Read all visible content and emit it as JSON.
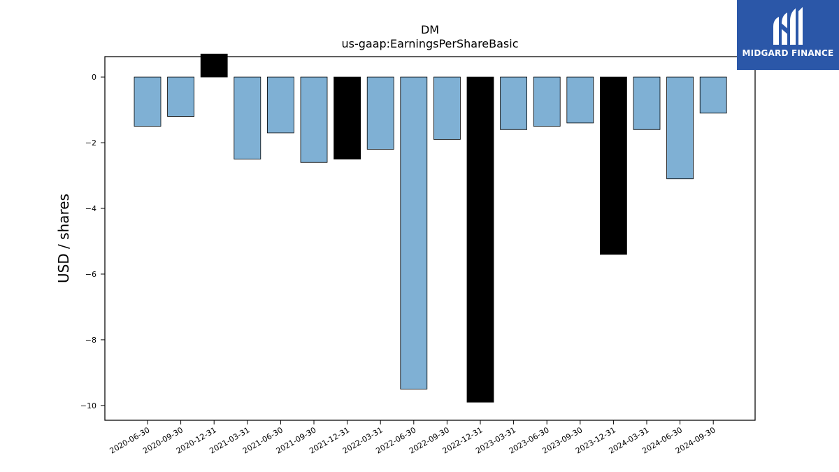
{
  "brand": {
    "name": "MIDGARD FINANCE",
    "logo_icon": "midgard-m-icon",
    "bg_color": "#2b57a8"
  },
  "chart_data": {
    "type": "bar",
    "title": "DM",
    "subtitle": "us-gaap:EarningsPerShareBasic",
    "xlabel": "",
    "ylabel": "USD / shares",
    "ylim": [
      -10.45,
      0.62
    ],
    "yticks": [
      0,
      -2,
      -4,
      -6,
      -8,
      -10
    ],
    "ytick_labels": [
      "0",
      "−2",
      "−4",
      "−6",
      "−8",
      "−10"
    ],
    "grid": false,
    "categories": [
      "2020-06-30",
      "2020-09-30",
      "2020-12-31",
      "2021-03-31",
      "2021-06-30",
      "2021-09-30",
      "2021-12-31",
      "2022-03-31",
      "2022-06-30",
      "2022-09-30",
      "2022-12-31",
      "2023-03-31",
      "2023-06-30",
      "2023-09-30",
      "2023-12-31",
      "2024-03-31",
      "2024-06-30",
      "2024-09-30"
    ],
    "values": [
      -1.5,
      -1.2,
      0.7,
      -2.5,
      -1.7,
      -2.6,
      -2.5,
      -2.2,
      -9.5,
      -1.9,
      -9.9,
      -1.6,
      -1.5,
      -1.4,
      -5.4,
      -1.6,
      -3.1,
      -1.1
    ],
    "bar_colors": [
      "#7fb0d4",
      "#7fb0d4",
      "#000000",
      "#7fb0d4",
      "#7fb0d4",
      "#7fb0d4",
      "#000000",
      "#7fb0d4",
      "#7fb0d4",
      "#7fb0d4",
      "#000000",
      "#7fb0d4",
      "#7fb0d4",
      "#7fb0d4",
      "#000000",
      "#7fb0d4",
      "#7fb0d4",
      "#7fb0d4"
    ]
  }
}
